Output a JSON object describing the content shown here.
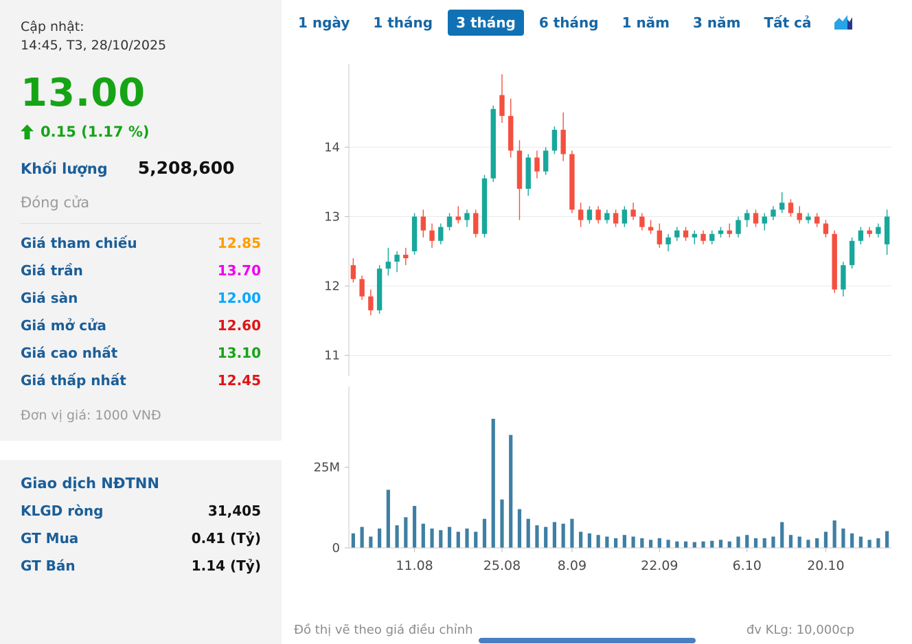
{
  "sidebar": {
    "updated_label": "Cập nhật:",
    "updated_time": "14:45, T3, 28/10/2025",
    "price": "13.00",
    "change": "0.15 (1.17 %)",
    "volume_label": "Khối lượng",
    "volume_value": "5,208,600",
    "session_status": "Đóng cửa",
    "price_rows": [
      {
        "label": "Giá tham chiếu",
        "value": "12.85",
        "color": "#ff9d00"
      },
      {
        "label": "Giá trần",
        "value": "13.70",
        "color": "#ee00ee"
      },
      {
        "label": "Giá sàn",
        "value": "12.00",
        "color": "#00a8ff"
      },
      {
        "label": "Giá mở cửa",
        "value": "12.60",
        "color": "#e01515"
      },
      {
        "label": "Giá cao nhất",
        "value": "13.10",
        "color": "#16a416"
      },
      {
        "label": "Giá thấp nhất",
        "value": "12.45",
        "color": "#e01515"
      }
    ],
    "unit_note": "Đơn vị giá: 1000 VNĐ",
    "foreign": {
      "title": "Giao dịch NĐTNN",
      "rows": [
        {
          "label": "KLGD ròng",
          "value": "31,405"
        },
        {
          "label": "GT Mua",
          "value": "0.41 (Tỷ)"
        },
        {
          "label": "GT Bán",
          "value": "1.14 (Tỷ)"
        }
      ]
    },
    "colors": {
      "up_green": "#16a416",
      "label_blue": "#1b5e97",
      "muted_gray": "#9a9a9a"
    }
  },
  "tabs": {
    "items": [
      {
        "id": "1d",
        "label": "1 ngày",
        "active": false
      },
      {
        "id": "1m",
        "label": "1 tháng",
        "active": false
      },
      {
        "id": "3m",
        "label": "3 tháng",
        "active": true
      },
      {
        "id": "6m",
        "label": "6 tháng",
        "active": false
      },
      {
        "id": "1y",
        "label": "1 năm",
        "active": false
      },
      {
        "id": "3y",
        "label": "3 năm",
        "active": false
      },
      {
        "id": "all",
        "label": "Tất cả",
        "active": false
      }
    ],
    "active_bg": "#1171b5",
    "text_color": "#1566a5"
  },
  "chart_data": {
    "type": "candlestick+volume",
    "title": "",
    "price_range": [
      10.7,
      15.2
    ],
    "price_gridlines": [
      11,
      12,
      13,
      14
    ],
    "volume_max": 50,
    "volume_unit": "M (shares)",
    "volume_ticks": [
      {
        "label": "25M",
        "value": 25
      },
      {
        "label": "0",
        "value": 0
      }
    ],
    "x_labels": [
      {
        "label": "11.08",
        "index": 7
      },
      {
        "label": "25.08",
        "index": 17
      },
      {
        "label": "8.09",
        "index": 25
      },
      {
        "label": "22.09",
        "index": 35
      },
      {
        "label": "6.10",
        "index": 45
      },
      {
        "label": "20.10",
        "index": 54
      }
    ],
    "up_color": "#18a79a",
    "down_color": "#f4503f",
    "volume_color": "#3f7fa3",
    "candles_format": [
      "open",
      "high",
      "low",
      "close",
      "volume_millions"
    ],
    "candles": [
      [
        12.3,
        12.4,
        12.05,
        12.1,
        4.5
      ],
      [
        12.1,
        12.15,
        11.8,
        11.85,
        6.5
      ],
      [
        11.85,
        11.95,
        11.58,
        11.65,
        3.5
      ],
      [
        11.65,
        12.3,
        11.6,
        12.25,
        6.0
      ],
      [
        12.25,
        12.55,
        12.15,
        12.35,
        18.0
      ],
      [
        12.35,
        12.5,
        12.2,
        12.45,
        7.0
      ],
      [
        12.45,
        12.55,
        12.3,
        12.4,
        9.5
      ],
      [
        12.5,
        13.05,
        12.45,
        13.0,
        13.0
      ],
      [
        13.0,
        13.1,
        12.7,
        12.8,
        7.5
      ],
      [
        12.8,
        12.9,
        12.55,
        12.65,
        6.0
      ],
      [
        12.65,
        12.9,
        12.6,
        12.85,
        5.5
      ],
      [
        12.85,
        13.05,
        12.8,
        13.0,
        6.5
      ],
      [
        13.0,
        13.15,
        12.9,
        12.95,
        5.0
      ],
      [
        12.95,
        13.1,
        12.85,
        13.05,
        6.0
      ],
      [
        13.05,
        13.1,
        12.7,
        12.75,
        5.0
      ],
      [
        12.75,
        13.6,
        12.7,
        13.55,
        9.0
      ],
      [
        13.55,
        14.6,
        13.5,
        14.55,
        40.0
      ],
      [
        14.75,
        15.05,
        14.35,
        14.45,
        15.0
      ],
      [
        14.45,
        14.7,
        13.85,
        13.95,
        35.0
      ],
      [
        13.95,
        14.1,
        12.95,
        13.4,
        12.0
      ],
      [
        13.4,
        13.9,
        13.3,
        13.85,
        9.0
      ],
      [
        13.85,
        13.95,
        13.55,
        13.65,
        7.0
      ],
      [
        13.65,
        14.0,
        13.6,
        13.95,
        6.5
      ],
      [
        13.95,
        14.3,
        13.9,
        14.25,
        8.0
      ],
      [
        14.25,
        14.5,
        13.8,
        13.9,
        7.5
      ],
      [
        13.9,
        13.95,
        13.05,
        13.1,
        9.0
      ],
      [
        13.1,
        13.2,
        12.85,
        12.95,
        5.0
      ],
      [
        12.95,
        13.15,
        12.9,
        13.1,
        4.5
      ],
      [
        13.1,
        13.15,
        12.9,
        12.95,
        4.0
      ],
      [
        12.95,
        13.1,
        12.9,
        13.05,
        3.5
      ],
      [
        13.05,
        13.1,
        12.85,
        12.9,
        3.0
      ],
      [
        12.9,
        13.15,
        12.85,
        13.1,
        4.0
      ],
      [
        13.1,
        13.2,
        12.95,
        13.0,
        3.5
      ],
      [
        13.0,
        13.05,
        12.8,
        12.85,
        3.0
      ],
      [
        12.85,
        12.95,
        12.75,
        12.8,
        2.5
      ],
      [
        12.8,
        12.9,
        12.55,
        12.6,
        3.0
      ],
      [
        12.6,
        12.75,
        12.5,
        12.7,
        2.5
      ],
      [
        12.7,
        12.85,
        12.65,
        12.8,
        2.0
      ],
      [
        12.8,
        12.85,
        12.65,
        12.7,
        2.0
      ],
      [
        12.7,
        12.8,
        12.6,
        12.75,
        1.8
      ],
      [
        12.75,
        12.8,
        12.6,
        12.65,
        2.0
      ],
      [
        12.65,
        12.8,
        12.6,
        12.75,
        2.2
      ],
      [
        12.75,
        12.85,
        12.7,
        12.8,
        2.5
      ],
      [
        12.8,
        12.9,
        12.7,
        12.75,
        2.0
      ],
      [
        12.75,
        13.0,
        12.7,
        12.95,
        3.5
      ],
      [
        12.95,
        13.1,
        12.85,
        13.05,
        4.0
      ],
      [
        13.05,
        13.1,
        12.85,
        12.9,
        3.0
      ],
      [
        12.9,
        13.05,
        12.8,
        13.0,
        3.0
      ],
      [
        13.0,
        13.15,
        12.95,
        13.1,
        3.5
      ],
      [
        13.1,
        13.35,
        13.05,
        13.2,
        8.0
      ],
      [
        13.2,
        13.25,
        13.0,
        13.05,
        4.0
      ],
      [
        13.05,
        13.15,
        12.9,
        12.95,
        3.5
      ],
      [
        12.95,
        13.05,
        12.9,
        13.0,
        2.5
      ],
      [
        13.0,
        13.05,
        12.85,
        12.9,
        3.0
      ],
      [
        12.9,
        12.95,
        12.7,
        12.75,
        5.0
      ],
      [
        12.75,
        12.8,
        11.9,
        11.95,
        8.5
      ],
      [
        11.95,
        12.35,
        11.85,
        12.3,
        6.0
      ],
      [
        12.3,
        12.7,
        12.25,
        12.65,
        4.5
      ],
      [
        12.65,
        12.85,
        12.6,
        12.8,
        3.5
      ],
      [
        12.8,
        12.85,
        12.7,
        12.75,
        2.5
      ],
      [
        12.75,
        12.9,
        12.7,
        12.85,
        3.0
      ],
      [
        12.6,
        13.1,
        12.45,
        13.0,
        5.2
      ]
    ]
  },
  "footer": {
    "left": "Đồ thị vẽ theo giá điều chỉnh",
    "right": "đv KLg: 10,000cp"
  }
}
